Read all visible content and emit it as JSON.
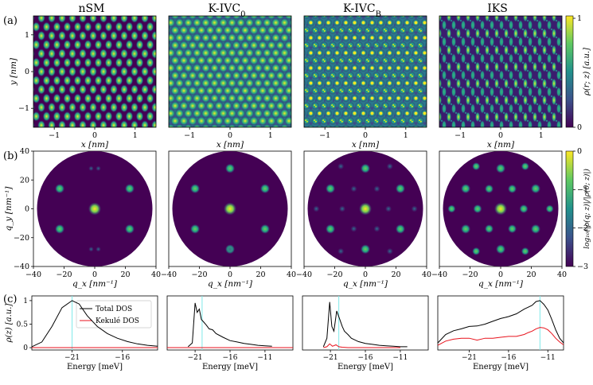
{
  "figure": {
    "row_labels": [
      "(a)",
      "(b)",
      "(c)"
    ],
    "column_titles": [
      "nSM",
      "K-IVC",
      "K-IVC",
      "IKS"
    ],
    "column_title_subscripts": [
      "",
      "0",
      "B",
      ""
    ],
    "panel_a": {
      "xlabel": "x [nm]",
      "ylabel": "y [nm]",
      "xticks": [
        "−1",
        "0",
        "1"
      ],
      "yticks": [
        "1",
        "0",
        "−1"
      ],
      "colorbar_label": "ρ(r; z) [a.u.]",
      "colorbar_ticks": [
        "1",
        "0"
      ]
    },
    "panel_b": {
      "xlabel": "q_x [nm⁻¹]",
      "ylabel": "q_y [nm⁻¹]",
      "xticks": [
        "−40",
        "−20",
        "0",
        "20",
        "40"
      ],
      "yticks": [
        "40",
        "20",
        "0",
        "−20",
        "−40"
      ],
      "colorbar_label": "log₁₀(|ρ(q; z)|/|ρ(0; z)|)",
      "colorbar_ticks": [
        "0",
        "−1",
        "−2",
        "−3"
      ]
    },
    "panel_c": {
      "xlabel": "Energy [meV]",
      "ylabel": "ρ(z) [a.u.]",
      "yticks": [
        "1",
        "0.5",
        "0"
      ],
      "xticks": [
        "−21",
        "−16",
        "−11"
      ],
      "legend": [
        "Total DOS",
        "Kekulé DOS"
      ]
    },
    "colors": {
      "viridis_dark": "#440154",
      "viridis_mid": "#21918c",
      "viridis_bright": "#fde725",
      "total_dos": "#000000",
      "kekule_dos": "#e8121c",
      "marker_line": "#7fe9e9"
    }
  },
  "chart_data": [
    {
      "type": "line",
      "title": "nSM",
      "xlabel": "Energy [meV]",
      "ylabel": "ρ(z) [a.u.]",
      "xlim": [
        -25,
        -12.5
      ],
      "ylim": [
        -0.05,
        1.1
      ],
      "marker_x": -21,
      "series": [
        {
          "name": "Total DOS",
          "x": [
            -25,
            -24,
            -23,
            -22,
            -21,
            -20.3,
            -19.5,
            -18.5,
            -17.5,
            -16.5,
            -15.5,
            -14.5,
            -13.5,
            -12.5
          ],
          "values": [
            0.02,
            0.12,
            0.45,
            0.85,
            1.0,
            0.93,
            0.68,
            0.45,
            0.3,
            0.2,
            0.13,
            0.08,
            0.05,
            0.03
          ]
        },
        {
          "name": "Kekulé DOS",
          "x": [
            -25,
            -12.5
          ],
          "values": [
            0.0,
            0.0
          ]
        }
      ]
    },
    {
      "type": "line",
      "title": "K-IVC_0",
      "xlabel": "Energy [meV]",
      "ylabel": "",
      "xlim": [
        -25,
        -7
      ],
      "ylim": [
        -0.05,
        1.1
      ],
      "marker_x": -20,
      "series": [
        {
          "name": "Total DOS",
          "x": [
            -22,
            -21.4,
            -21,
            -20.7,
            -20.4,
            -20.1,
            -19.8,
            -19.4,
            -19,
            -18.5,
            -18,
            -17,
            -16,
            -15,
            -14,
            -13,
            -12,
            -11,
            -10
          ],
          "values": [
            0.02,
            0.1,
            0.95,
            0.75,
            0.82,
            0.6,
            0.55,
            0.48,
            0.4,
            0.38,
            0.3,
            0.22,
            0.15,
            0.12,
            0.09,
            0.07,
            0.05,
            0.04,
            0.03
          ]
        },
        {
          "name": "Kekulé DOS",
          "x": [
            -25,
            -7
          ],
          "values": [
            0.0,
            0.0
          ]
        }
      ]
    },
    {
      "type": "line",
      "title": "K-IVC_B",
      "xlabel": "Energy [meV]",
      "ylabel": "",
      "xlim": [
        -25,
        -7
      ],
      "ylim": [
        -0.05,
        1.1
      ],
      "marker_x": -19.8,
      "series": [
        {
          "name": "Total DOS",
          "x": [
            -22,
            -21.5,
            -21.1,
            -20.8,
            -20.5,
            -20.1,
            -19.7,
            -19.3,
            -19,
            -18.5,
            -18,
            -17,
            -16,
            -15,
            -14,
            -13,
            -12,
            -11,
            -10
          ],
          "values": [
            0.02,
            0.2,
            0.97,
            0.45,
            0.35,
            0.78,
            0.62,
            0.45,
            0.35,
            0.28,
            0.2,
            0.13,
            0.09,
            0.07,
            0.05,
            0.04,
            0.03,
            0.02,
            0.02
          ]
        },
        {
          "name": "Kekulé DOS",
          "x": [
            -22,
            -21.5,
            -21.1,
            -20.7,
            -20.2,
            -19.8,
            -19.3,
            -18.5,
            -17,
            -15,
            -13,
            -11
          ],
          "values": [
            0.0,
            0.02,
            0.08,
            0.03,
            0.06,
            0.02,
            0.01,
            0.0,
            0.0,
            0.0,
            0.0,
            0.0
          ]
        }
      ]
    },
    {
      "type": "line",
      "title": "IKS",
      "xlabel": "Energy [meV]",
      "ylabel": "",
      "xlim": [
        -25,
        -9
      ],
      "ylim": [
        -0.05,
        1.1
      ],
      "marker_x": -12,
      "series": [
        {
          "name": "Total DOS",
          "x": [
            -25,
            -24,
            -23,
            -22,
            -21,
            -20,
            -19,
            -18,
            -17,
            -16,
            -15,
            -14,
            -13.5,
            -13,
            -12.5,
            -12,
            -11.5,
            -11,
            -10.5,
            -10,
            -9.5,
            -9
          ],
          "values": [
            0.1,
            0.28,
            0.36,
            0.4,
            0.45,
            0.46,
            0.5,
            0.56,
            0.62,
            0.66,
            0.72,
            0.82,
            0.86,
            0.9,
            0.98,
            1.0,
            0.92,
            0.8,
            0.6,
            0.38,
            0.2,
            0.1
          ]
        },
        {
          "name": "Kekulé DOS",
          "x": [
            -25,
            -24,
            -23,
            -22,
            -21,
            -20,
            -19,
            -18,
            -17,
            -16,
            -15,
            -14,
            -13.5,
            -13,
            -12.5,
            -12,
            -11.5,
            -11,
            -10.5,
            -10,
            -9.5,
            -9
          ],
          "values": [
            0.05,
            0.14,
            0.18,
            0.2,
            0.2,
            0.16,
            0.2,
            0.2,
            0.22,
            0.24,
            0.24,
            0.28,
            0.32,
            0.35,
            0.4,
            0.43,
            0.42,
            0.38,
            0.3,
            0.2,
            0.12,
            0.06
          ]
        }
      ]
    }
  ]
}
